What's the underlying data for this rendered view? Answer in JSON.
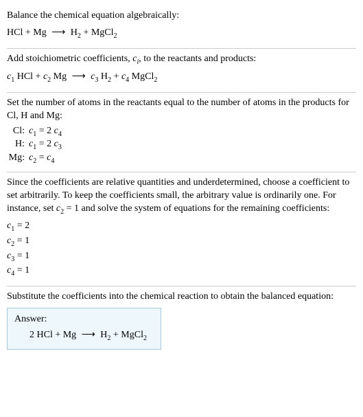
{
  "section1": {
    "intro": "Balance the chemical equation algebraically:",
    "eq": {
      "lhs1": "HCl",
      "plus": " + ",
      "lhs2": "Mg",
      "arrow": "⟶",
      "rhs1a": "H",
      "rhs1sub": "2",
      "rhs_plus": " + ",
      "rhs2a": "MgCl",
      "rhs2sub": "2"
    }
  },
  "section2": {
    "intro1": "Add stoichiometric coefficients, ",
    "ci_c": "c",
    "ci_i": "i",
    "intro2": ", to the reactants and products:",
    "eq": {
      "c1c": "c",
      "c1n": "1",
      "t1": " HCl + ",
      "c2c": "c",
      "c2n": "2",
      "t2": " Mg ",
      "arrow": "⟶",
      "c3c": "c",
      "c3n": "3",
      "t3a": " H",
      "t3sub": "2",
      "t3b": " + ",
      "c4c": "c",
      "c4n": "4",
      "t4a": " MgCl",
      "t4sub": "2"
    }
  },
  "section3": {
    "intro": "Set the number of atoms in the reactants equal to the number of atoms in the products for Cl, H and Mg:",
    "rows": {
      "r1l": "Cl:",
      "r1_c1c": "c",
      "r1_c1n": "1",
      "r1_eq": " = 2 ",
      "r1_c2c": "c",
      "r1_c2n": "4",
      "r2l": "H:",
      "r2_c1c": "c",
      "r2_c1n": "1",
      "r2_eq": " = 2 ",
      "r2_c2c": "c",
      "r2_c2n": "3",
      "r3l": "Mg:",
      "r3_c1c": "c",
      "r3_c1n": "2",
      "r3_eq": " = ",
      "r3_c2c": "c",
      "r3_c2n": "4"
    }
  },
  "section4": {
    "intro1": "Since the coefficients are relative quantities and underdetermined, choose a coefficient to set arbitrarily. To keep the coefficients small, the arbitrary value is ordinarily one. For instance, set ",
    "cset_c": "c",
    "cset_n": "2",
    "cset_eq": " = 1",
    "intro2": " and solve the system of equations for the remaining coefficients:",
    "sol": {
      "s1c": "c",
      "s1n": "1",
      "s1v": " = 2",
      "s2c": "c",
      "s2n": "2",
      "s2v": " = 1",
      "s3c": "c",
      "s3n": "3",
      "s3v": " = 1",
      "s4c": "c",
      "s4n": "4",
      "s4v": " = 1"
    }
  },
  "section5": {
    "intro": "Substitute the coefficients into the chemical reaction to obtain the balanced equation:",
    "answer_label": "Answer:",
    "eq": {
      "lhs": "2 HCl + Mg ",
      "arrow": "⟶",
      "rhs1a": " H",
      "rhs1sub": "2",
      "rhs_plus": " + ",
      "rhs2a": "MgCl",
      "rhs2sub": "2"
    }
  }
}
